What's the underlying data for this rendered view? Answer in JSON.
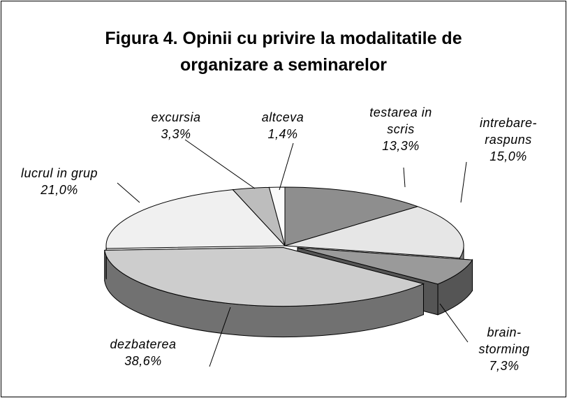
{
  "chart_data": {
    "type": "pie",
    "title": "Figura 4. Opinii cu privire la modalitatile de\norganizare a seminarelor",
    "categories": [
      "testarea in\nscris",
      "intrebare-\nraspuns",
      "brain-\nstorming",
      "dezbaterea",
      "lucrul in grup",
      "excursia",
      "altceva"
    ],
    "values": [
      13.3,
      15.0,
      7.3,
      38.6,
      21.0,
      3.3,
      1.4
    ],
    "value_labels": [
      "13,3%",
      "15,0%",
      "7,3%",
      "38,6%",
      "21,0%",
      "3,3%",
      "1,4%"
    ],
    "colors": [
      "#8e8e8e",
      "#e6e6e6",
      "#9a9a9a",
      "#cdcdcd",
      "#f0f0f0",
      "#bdbdbd",
      "#fafafa"
    ]
  }
}
